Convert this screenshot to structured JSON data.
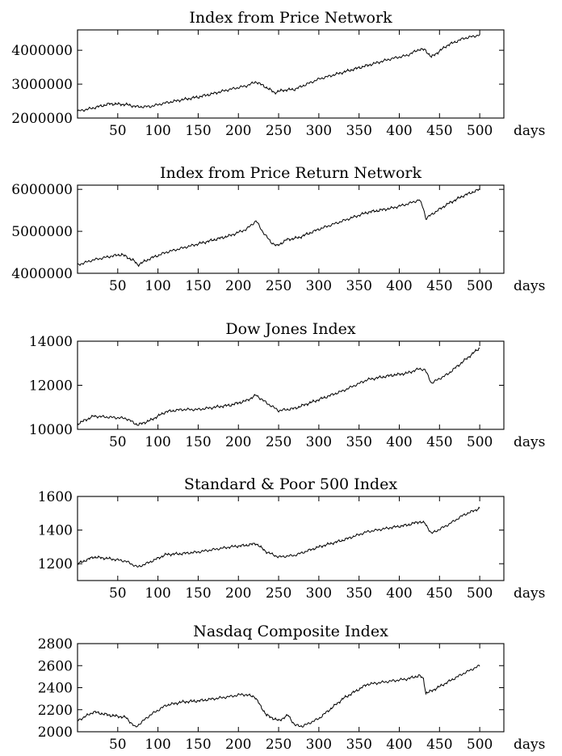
{
  "chart_data": [
    {
      "type": "line",
      "title": "Index from Price Network",
      "xunit": "days",
      "xlim": [
        0,
        500
      ],
      "ylim": [
        2000000,
        4600000
      ],
      "xticks": [
        50,
        100,
        150,
        200,
        250,
        300,
        350,
        400,
        450,
        500
      ],
      "yticks": [
        2000000,
        3000000,
        4000000
      ],
      "x": [
        0,
        20,
        40,
        60,
        75,
        90,
        110,
        130,
        150,
        170,
        190,
        210,
        222,
        235,
        245,
        255,
        270,
        300,
        330,
        360,
        390,
        410,
        425,
        432,
        440,
        460,
        480,
        500
      ],
      "y": [
        2200000,
        2300000,
        2420000,
        2400000,
        2330000,
        2340000,
        2450000,
        2540000,
        2620000,
        2730000,
        2850000,
        2950000,
        3070000,
        2900000,
        2750000,
        2820000,
        2850000,
        3150000,
        3350000,
        3550000,
        3750000,
        3850000,
        4030000,
        4010000,
        3800000,
        4150000,
        4350000,
        4450000
      ]
    },
    {
      "type": "line",
      "title": "Index from Price Return Network",
      "xunit": "days",
      "xlim": [
        0,
        500
      ],
      "ylim": [
        4000000,
        6100000
      ],
      "xticks": [
        50,
        100,
        150,
        200,
        250,
        300,
        350,
        400,
        450,
        500
      ],
      "yticks": [
        4000000,
        5000000,
        6000000
      ],
      "x": [
        0,
        20,
        40,
        55,
        70,
        75,
        90,
        110,
        130,
        150,
        170,
        190,
        210,
        222,
        230,
        240,
        248,
        260,
        275,
        300,
        330,
        360,
        390,
        410,
        425,
        430,
        433,
        440,
        460,
        480,
        500
      ],
      "y": [
        4200000,
        4320000,
        4400000,
        4450000,
        4300000,
        4200000,
        4350000,
        4500000,
        4600000,
        4700000,
        4800000,
        4900000,
        5050000,
        5250000,
        5000000,
        4750000,
        4650000,
        4800000,
        4850000,
        5050000,
        5250000,
        5450000,
        5550000,
        5650000,
        5750000,
        5550000,
        5300000,
        5400000,
        5650000,
        5850000,
        6000000
      ]
    },
    {
      "type": "line",
      "title": "Dow Jones Index",
      "xunit": "days",
      "xlim": [
        0,
        500
      ],
      "ylim": [
        10000,
        14000
      ],
      "xticks": [
        50,
        100,
        150,
        200,
        250,
        300,
        350,
        400,
        450,
        500
      ],
      "yticks": [
        10000,
        12000,
        14000
      ],
      "x": [
        0,
        20,
        40,
        60,
        75,
        90,
        110,
        130,
        150,
        170,
        190,
        210,
        222,
        235,
        250,
        270,
        300,
        330,
        360,
        390,
        410,
        425,
        432,
        440,
        460,
        480,
        500
      ],
      "y": [
        10250,
        10600,
        10550,
        10500,
        10200,
        10400,
        10800,
        10900,
        10900,
        11000,
        11100,
        11300,
        11550,
        11200,
        10850,
        10950,
        11350,
        11750,
        12250,
        12450,
        12550,
        12750,
        12700,
        12100,
        12500,
        13100,
        13700
      ]
    },
    {
      "type": "line",
      "title": "Standard & Poor 500 Index",
      "xunit": "days",
      "xlim": [
        0,
        500
      ],
      "ylim": [
        1100,
        1600
      ],
      "xticks": [
        50,
        100,
        150,
        200,
        250,
        300,
        350,
        400,
        450,
        500
      ],
      "yticks": [
        1200,
        1400,
        1600
      ],
      "x": [
        0,
        20,
        40,
        60,
        75,
        90,
        110,
        130,
        150,
        170,
        190,
        210,
        222,
        235,
        250,
        270,
        300,
        330,
        360,
        390,
        410,
        425,
        432,
        440,
        460,
        480,
        500
      ],
      "y": [
        1200,
        1240,
        1230,
        1215,
        1180,
        1210,
        1255,
        1260,
        1270,
        1285,
        1300,
        1310,
        1320,
        1270,
        1240,
        1250,
        1300,
        1340,
        1390,
        1415,
        1430,
        1450,
        1440,
        1380,
        1430,
        1490,
        1530
      ]
    },
    {
      "type": "line",
      "title": "Nasdaq Composite Index",
      "xunit": "days",
      "xlim": [
        0,
        500
      ],
      "ylim": [
        2000,
        2800
      ],
      "xticks": [
        50,
        100,
        150,
        200,
        250,
        300,
        350,
        400,
        450,
        500
      ],
      "yticks": [
        2000,
        2200,
        2400,
        2600,
        2800
      ],
      "x": [
        0,
        20,
        40,
        60,
        72,
        90,
        110,
        130,
        150,
        170,
        190,
        205,
        220,
        235,
        250,
        262,
        270,
        280,
        300,
        330,
        360,
        390,
        410,
        425,
        430,
        433,
        440,
        460,
        480,
        500
      ],
      "y": [
        2100,
        2180,
        2150,
        2130,
        2040,
        2150,
        2240,
        2270,
        2280,
        2300,
        2320,
        2340,
        2320,
        2150,
        2100,
        2150,
        2060,
        2050,
        2120,
        2300,
        2430,
        2460,
        2480,
        2510,
        2480,
        2350,
        2370,
        2450,
        2530,
        2600
      ]
    }
  ]
}
